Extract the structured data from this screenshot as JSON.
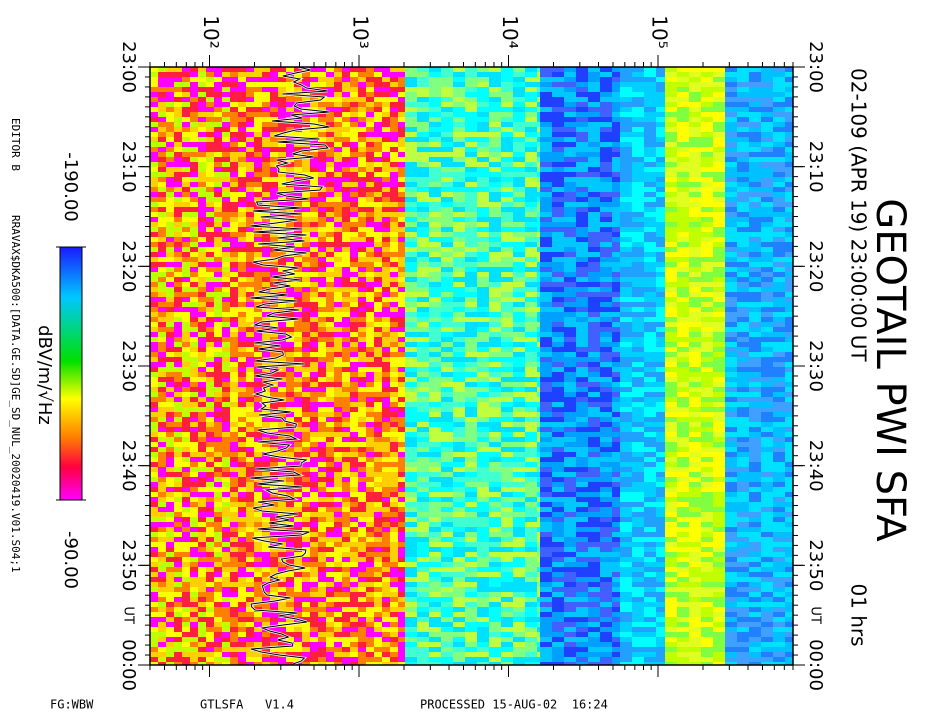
{
  "chart_data": {
    "type": "spectrogram",
    "title": "GEOTAIL PWI SFA",
    "subtitle": "02-109 (APR 19) 23:00:00 UT",
    "duration_label": "01 hrs",
    "time_unit": "UT",
    "xscale": "log",
    "xlim": [
      40,
      800000
    ],
    "xticks": [
      {
        "value": 100,
        "label": "10²"
      },
      {
        "value": 1000,
        "label": "10³"
      },
      {
        "value": 10000,
        "label": "10⁴"
      },
      {
        "value": 100000,
        "label": "10⁵"
      }
    ],
    "ylim": [
      0,
      60
    ],
    "yticks": [
      {
        "value": 0,
        "label": "23:00"
      },
      {
        "value": 10,
        "label": "23:10"
      },
      {
        "value": 20,
        "label": "23:20"
      },
      {
        "value": 30,
        "label": "23:30"
      },
      {
        "value": 40,
        "label": "23:40"
      },
      {
        "value": 50,
        "label": "23:50"
      },
      {
        "value": 60,
        "label": "00:00"
      }
    ],
    "colorbar": {
      "label": "dBV/m/√Hz",
      "ticks": [
        {
          "value": -190,
          "label": "-190.00"
        },
        {
          "value": -90,
          "label": "-90.00"
        }
      ]
    },
    "footer": {
      "editor": "EDITOR B",
      "file": "RRAVAX$DKA500:[DATA.GE.SD]GE_SD_NUL_20020419.V01.S04;1",
      "fg": "FG:WBW",
      "program": "GTLSFA   V1.4",
      "processed": "PROCESSED 15-AUG-02  16:24"
    }
  }
}
